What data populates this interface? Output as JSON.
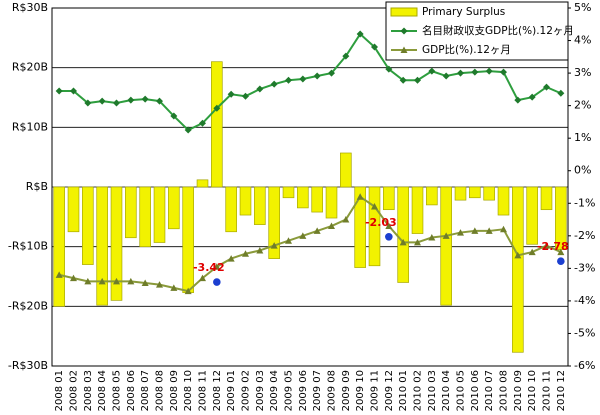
{
  "chart_data": {
    "type": "bar_line",
    "categories": [
      "2008 01",
      "2008 02",
      "2008 03",
      "2008 04",
      "2008 05",
      "2008 06",
      "2008 07",
      "2008 08",
      "2008 09",
      "2008 10",
      "2008 11",
      "2008 12",
      "2009 01",
      "2009 02",
      "2009 03",
      "2009 04",
      "2009 05",
      "2009 06",
      "2009 07",
      "2009 08",
      "2009 09",
      "2009 10",
      "2009 11",
      "2009 12",
      "2010 01",
      "2010 02",
      "2010 03",
      "2010 04",
      "2010 05",
      "2010 06",
      "2010 07",
      "2010 08",
      "2010 09",
      "2010 10",
      "2010 11",
      "2010 12"
    ],
    "series": [
      {
        "name": "Primary Surplus",
        "type": "bar",
        "color": "#f2f200",
        "values": [
          -20,
          -7.5,
          -13,
          -19.8,
          -19,
          -8.5,
          -10,
          -9.3,
          -7,
          -17.7,
          1.2,
          21,
          -7.5,
          -4.7,
          -6.3,
          -12,
          -1.8,
          -3.5,
          -4.2,
          -5.2,
          5.7,
          -13.5,
          -13.2,
          -3.8,
          -16,
          -7.8,
          -3,
          -19.8,
          -2.2,
          -1.8,
          -2.2,
          -4.7,
          -27.7,
          -9.6,
          -3.8,
          -10.5
        ]
      },
      {
        "name": "名目財政収支GDP比(%).12ヶ月",
        "type": "line",
        "axis": "y2",
        "color": "#2e9e3e",
        "values": [
          2.45,
          2.45,
          2.08,
          2.14,
          2.08,
          2.17,
          2.2,
          2.14,
          1.68,
          1.25,
          1.46,
          1.92,
          2.35,
          2.29,
          2.51,
          2.66,
          2.78,
          2.82,
          2.91,
          3.0,
          3.52,
          4.2,
          3.8,
          3.12,
          2.78,
          2.78,
          3.06,
          2.91,
          3.0,
          3.03,
          3.06,
          3.03,
          2.17,
          2.26,
          2.57,
          2.38
        ]
      },
      {
        "name": "GDP比(%).12ヶ月",
        "type": "line",
        "axis": "y2",
        "color": "#8a9a3a",
        "values": [
          -3.2,
          -3.3,
          -3.4,
          -3.4,
          -3.4,
          -3.4,
          -3.45,
          -3.5,
          -3.6,
          -3.7,
          -3.3,
          -2.95,
          -2.7,
          -2.55,
          -2.45,
          -2.3,
          -2.15,
          -2.0,
          -1.85,
          -1.7,
          -1.5,
          -0.8,
          -1.1,
          -1.7,
          -2.2,
          -2.2,
          -2.05,
          -2.0,
          -1.9,
          -1.85,
          -1.85,
          -1.8,
          -2.6,
          -2.5,
          -2.3,
          -2.5
        ]
      },
      {
        "type": "scatter",
        "axis": "y2",
        "color": "#1c3fd0",
        "values": [
          null,
          null,
          null,
          null,
          null,
          null,
          null,
          null,
          null,
          null,
          null,
          -3.42,
          null,
          null,
          null,
          null,
          null,
          null,
          null,
          null,
          null,
          null,
          null,
          -2.03,
          null,
          null,
          null,
          null,
          null,
          null,
          null,
          null,
          null,
          null,
          null,
          -2.78
        ],
        "value_labels": [
          null,
          null,
          null,
          null,
          null,
          null,
          null,
          null,
          null,
          null,
          null,
          "-3.42",
          null,
          null,
          null,
          null,
          null,
          null,
          null,
          null,
          null,
          null,
          null,
          "-2.03",
          null,
          null,
          null,
          null,
          null,
          null,
          null,
          null,
          null,
          null,
          null,
          "-2.78"
        ]
      }
    ],
    "ylim": [
      -30,
      30
    ],
    "yticks": [
      {
        "value": -30,
        "label": "-R$30B"
      },
      {
        "value": -20,
        "label": "-R$20B"
      },
      {
        "value": -10,
        "label": "-R$10B"
      },
      {
        "value": 0,
        "label": "R$B"
      },
      {
        "value": 10,
        "label": "R$10B"
      },
      {
        "value": 20,
        "label": "R$20B"
      },
      {
        "value": 30,
        "label": "R$30B"
      }
    ],
    "y2lim": [
      -6,
      5
    ],
    "y2ticks": [
      {
        "value": -6,
        "label": "-6%"
      },
      {
        "value": -5,
        "label": "-5%"
      },
      {
        "value": -4,
        "label": "-4%"
      },
      {
        "value": -3,
        "label": "-3%"
      },
      {
        "value": -2,
        "label": "-2%"
      },
      {
        "value": -1,
        "label": "-1%"
      },
      {
        "value": 0,
        "label": "0%"
      },
      {
        "value": 1,
        "label": "1%"
      },
      {
        "value": 2,
        "label": "2%"
      },
      {
        "value": 3,
        "label": "3%"
      },
      {
        "value": 4,
        "label": "4%"
      },
      {
        "value": 5,
        "label": "5%"
      }
    ],
    "grid": true,
    "legend": "top-right"
  }
}
